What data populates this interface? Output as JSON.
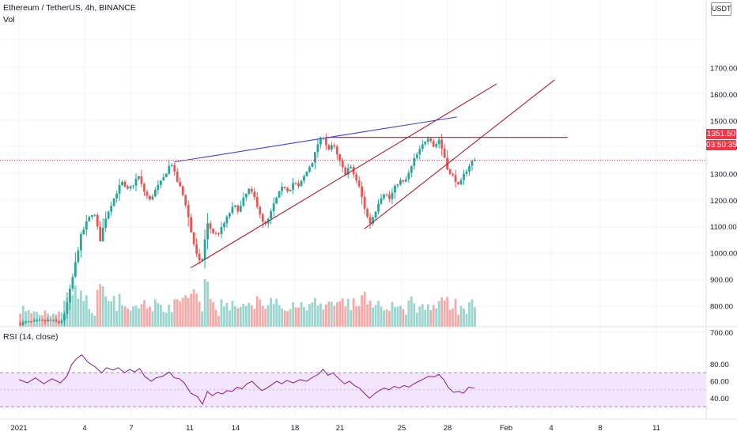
{
  "header": {
    "symbol_line": "Ethereum / TetherUS, 4h, BINANCE",
    "volume_label": "Vol",
    "currency_button": "USDT",
    "rsi_label": "RSI (14, close)"
  },
  "price_axis": {
    "ticks": [
      "1700.00",
      "1600.00",
      "1500.00",
      "1400.00",
      "1300.00",
      "1200.00",
      "1100.00",
      "1000.00",
      "900.00",
      "800.00",
      "700.00"
    ],
    "current_price": "1351.50",
    "countdown": "03:50:35"
  },
  "rsi_axis": {
    "ticks": [
      "80.00",
      "60.00",
      "40.00"
    ]
  },
  "time_axis": {
    "ticks": [
      "2021",
      "4",
      "7",
      "11",
      "14",
      "18",
      "21",
      "25",
      "28",
      "Feb",
      "4",
      "8",
      "11"
    ]
  },
  "colors": {
    "up": "#26a69a",
    "down": "#ef5350",
    "trend_blue": "#3f3fd9",
    "trend_red": "#b2182b",
    "rsi_line": "#8e1599",
    "rsi_band": "#f3e5fb",
    "price_tag": "#f23645"
  },
  "chart_data": {
    "type": "candlestick",
    "instrument": "Ethereum / TetherUS",
    "interval": "4h",
    "exchange": "BINANCE",
    "price_range": [
      620,
      1790
    ],
    "last_price": 1351.5,
    "price_path": [
      [
        0.0,
        735
      ],
      [
        1.0,
        740
      ],
      [
        2.0,
        745
      ],
      [
        2.5,
        738
      ],
      [
        2.8,
        755
      ],
      [
        3.1,
        840
      ],
      [
        3.4,
        930
      ],
      [
        3.8,
        1060
      ],
      [
        4.2,
        1120
      ],
      [
        4.6,
        1160
      ],
      [
        5.0,
        1050
      ],
      [
        5.3,
        1130
      ],
      [
        5.7,
        1190
      ],
      [
        6.0,
        1230
      ],
      [
        6.3,
        1270
      ],
      [
        6.6,
        1235
      ],
      [
        7.0,
        1260
      ],
      [
        7.3,
        1295
      ],
      [
        7.6,
        1240
      ],
      [
        8.0,
        1200
      ],
      [
        8.4,
        1245
      ],
      [
        8.8,
        1280
      ],
      [
        9.1,
        1320
      ],
      [
        9.3,
        1345
      ],
      [
        9.6,
        1280
      ],
      [
        9.9,
        1240
      ],
      [
        10.2,
        1180
      ],
      [
        10.5,
        1080
      ],
      [
        10.8,
        1000
      ],
      [
        11.1,
        950
      ],
      [
        11.3,
        1040
      ],
      [
        11.5,
        1110
      ],
      [
        11.8,
        1080
      ],
      [
        12.1,
        1070
      ],
      [
        12.4,
        1100
      ],
      [
        12.8,
        1150
      ],
      [
        13.1,
        1180
      ],
      [
        13.4,
        1160
      ],
      [
        13.7,
        1210
      ],
      [
        14.0,
        1240
      ],
      [
        14.3,
        1215
      ],
      [
        14.6,
        1165
      ],
      [
        14.9,
        1100
      ],
      [
        15.2,
        1130
      ],
      [
        15.5,
        1185
      ],
      [
        15.8,
        1225
      ],
      [
        16.1,
        1255
      ],
      [
        16.4,
        1235
      ],
      [
        16.7,
        1270
      ],
      [
        17.0,
        1250
      ],
      [
        17.3,
        1285
      ],
      [
        17.6,
        1320
      ],
      [
        17.9,
        1355
      ],
      [
        18.2,
        1420
      ],
      [
        18.5,
        1440
      ],
      [
        18.8,
        1390
      ],
      [
        19.1,
        1410
      ],
      [
        19.4,
        1360
      ],
      [
        19.8,
        1300
      ],
      [
        20.1,
        1330
      ],
      [
        20.4,
        1290
      ],
      [
        20.7,
        1245
      ],
      [
        21.0,
        1170
      ],
      [
        21.3,
        1110
      ],
      [
        21.6,
        1150
      ],
      [
        21.9,
        1205
      ],
      [
        22.2,
        1230
      ],
      [
        22.5,
        1205
      ],
      [
        22.8,
        1245
      ],
      [
        23.1,
        1275
      ],
      [
        23.4,
        1265
      ],
      [
        23.7,
        1305
      ],
      [
        24.0,
        1355
      ],
      [
        24.3,
        1385
      ],
      [
        24.6,
        1420
      ],
      [
        24.9,
        1445
      ],
      [
        25.2,
        1400
      ],
      [
        25.5,
        1430
      ],
      [
        25.8,
        1370
      ],
      [
        26.1,
        1300
      ],
      [
        26.4,
        1290
      ],
      [
        26.7,
        1250
      ],
      [
        27.0,
        1295
      ],
      [
        27.3,
        1330
      ],
      [
        27.55,
        1351.5
      ]
    ],
    "rsi": {
      "period": 14,
      "source": "close",
      "overbought": 70,
      "oversold": 30,
      "range": [
        20,
        92
      ],
      "path": [
        [
          0.0,
          62
        ],
        [
          0.5,
          58
        ],
        [
          1.0,
          64
        ],
        [
          1.5,
          57
        ],
        [
          2.0,
          63
        ],
        [
          2.5,
          58
        ],
        [
          2.9,
          66
        ],
        [
          3.2,
          80
        ],
        [
          3.5,
          87
        ],
        [
          3.8,
          91
        ],
        [
          4.2,
          82
        ],
        [
          4.6,
          77
        ],
        [
          5.0,
          70
        ],
        [
          5.3,
          76
        ],
        [
          5.7,
          73
        ],
        [
          6.0,
          76
        ],
        [
          6.4,
          70
        ],
        [
          6.7,
          74
        ],
        [
          7.0,
          71
        ],
        [
          7.3,
          75
        ],
        [
          7.6,
          66
        ],
        [
          8.0,
          60
        ],
        [
          8.3,
          64
        ],
        [
          8.7,
          66
        ],
        [
          9.1,
          71
        ],
        [
          9.4,
          64
        ],
        [
          9.7,
          63
        ],
        [
          10.0,
          58
        ],
        [
          10.4,
          46
        ],
        [
          10.8,
          42
        ],
        [
          11.1,
          33
        ],
        [
          11.4,
          48
        ],
        [
          11.7,
          43
        ],
        [
          12.0,
          47
        ],
        [
          12.3,
          45
        ],
        [
          12.6,
          49
        ],
        [
          12.9,
          48
        ],
        [
          13.2,
          53
        ],
        [
          13.5,
          51
        ],
        [
          13.8,
          57
        ],
        [
          14.1,
          60
        ],
        [
          14.4,
          54
        ],
        [
          14.7,
          49
        ],
        [
          15.0,
          52
        ],
        [
          15.3,
          56
        ],
        [
          15.6,
          60
        ],
        [
          15.9,
          57
        ],
        [
          16.2,
          61
        ],
        [
          16.6,
          58
        ],
        [
          17.0,
          62
        ],
        [
          17.4,
          60
        ],
        [
          17.8,
          65
        ],
        [
          18.1,
          68
        ],
        [
          18.4,
          74
        ],
        [
          18.7,
          67
        ],
        [
          19.0,
          70
        ],
        [
          19.3,
          64
        ],
        [
          19.7,
          57
        ],
        [
          20.0,
          60
        ],
        [
          20.3,
          55
        ],
        [
          20.6,
          52
        ],
        [
          20.9,
          46
        ],
        [
          21.2,
          40
        ],
        [
          21.5,
          45
        ],
        [
          21.8,
          49
        ],
        [
          22.1,
          52
        ],
        [
          22.4,
          50
        ],
        [
          22.7,
          54
        ],
        [
          23.0,
          52
        ],
        [
          23.3,
          55
        ],
        [
          23.6,
          53
        ],
        [
          23.9,
          57
        ],
        [
          24.2,
          60
        ],
        [
          24.5,
          63
        ],
        [
          24.8,
          66
        ],
        [
          25.1,
          65
        ],
        [
          25.4,
          68
        ],
        [
          25.7,
          62
        ],
        [
          26.0,
          52
        ],
        [
          26.3,
          47
        ],
        [
          26.6,
          48
        ],
        [
          26.9,
          46
        ],
        [
          27.2,
          53
        ],
        [
          27.55,
          52
        ]
      ]
    },
    "trendlines": [
      {
        "color": "blue",
        "from": [
          9.4,
          1345
        ],
        "to": [
          26.5,
          1515
        ]
      },
      {
        "color": "red",
        "from": [
          18.6,
          1438
        ],
        "to": [
          33.2,
          1438
        ]
      },
      {
        "color": "red",
        "from": [
          10.4,
          945
        ],
        "to": [
          28.9,
          1640
        ]
      },
      {
        "color": "red",
        "from": [
          20.9,
          1092
        ],
        "to": [
          32.4,
          1655
        ]
      }
    ]
  }
}
